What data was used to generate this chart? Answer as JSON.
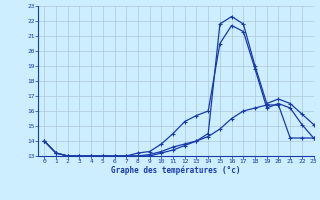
{
  "title": "Graphe des températures (°c)",
  "bg_color": "#cceeff",
  "grid_color": "#b0c8d8",
  "line_color": "#1a3aaa",
  "xlim": [
    -0.5,
    23
  ],
  "ylim": [
    13,
    23
  ],
  "yticks": [
    13,
    14,
    15,
    16,
    17,
    18,
    19,
    20,
    21,
    22,
    23
  ],
  "xticks": [
    0,
    1,
    2,
    3,
    4,
    5,
    6,
    7,
    8,
    9,
    10,
    11,
    12,
    13,
    14,
    15,
    16,
    17,
    18,
    19,
    20,
    21,
    22,
    23
  ],
  "line1_x": [
    0,
    1,
    2,
    3,
    4,
    5,
    6,
    7,
    8,
    9,
    10,
    11,
    12,
    13,
    14,
    15,
    16,
    17,
    18,
    19,
    20,
    21,
    22,
    23
  ],
  "line1_y": [
    14.0,
    13.2,
    13.0,
    13.0,
    13.0,
    13.0,
    13.0,
    13.0,
    13.0,
    13.1,
    13.3,
    13.6,
    13.8,
    14.0,
    14.3,
    14.8,
    15.5,
    16.0,
    16.2,
    16.4,
    16.4,
    14.2,
    14.2,
    14.2
  ],
  "line2_x": [
    0,
    1,
    2,
    3,
    4,
    5,
    6,
    7,
    8,
    9,
    10,
    11,
    12,
    13,
    14,
    15,
    16,
    17,
    18,
    19,
    20,
    21,
    22,
    23
  ],
  "line2_y": [
    14.0,
    13.2,
    13.0,
    13.0,
    13.0,
    13.0,
    13.0,
    13.0,
    13.2,
    13.3,
    13.8,
    14.5,
    15.3,
    15.7,
    16.0,
    20.5,
    21.7,
    21.3,
    18.8,
    16.2,
    16.5,
    16.2,
    15.1,
    14.2
  ],
  "line3_x": [
    0,
    1,
    2,
    3,
    4,
    5,
    6,
    7,
    8,
    9,
    10,
    11,
    12,
    13,
    14,
    15,
    16,
    17,
    18,
    19,
    20,
    21,
    22,
    23
  ],
  "line3_y": [
    14.0,
    13.2,
    13.0,
    13.0,
    13.0,
    13.0,
    13.0,
    13.0,
    13.0,
    13.0,
    13.2,
    13.4,
    13.7,
    14.0,
    14.5,
    21.8,
    22.3,
    21.8,
    19.0,
    16.5,
    16.8,
    16.5,
    15.8,
    15.1
  ]
}
